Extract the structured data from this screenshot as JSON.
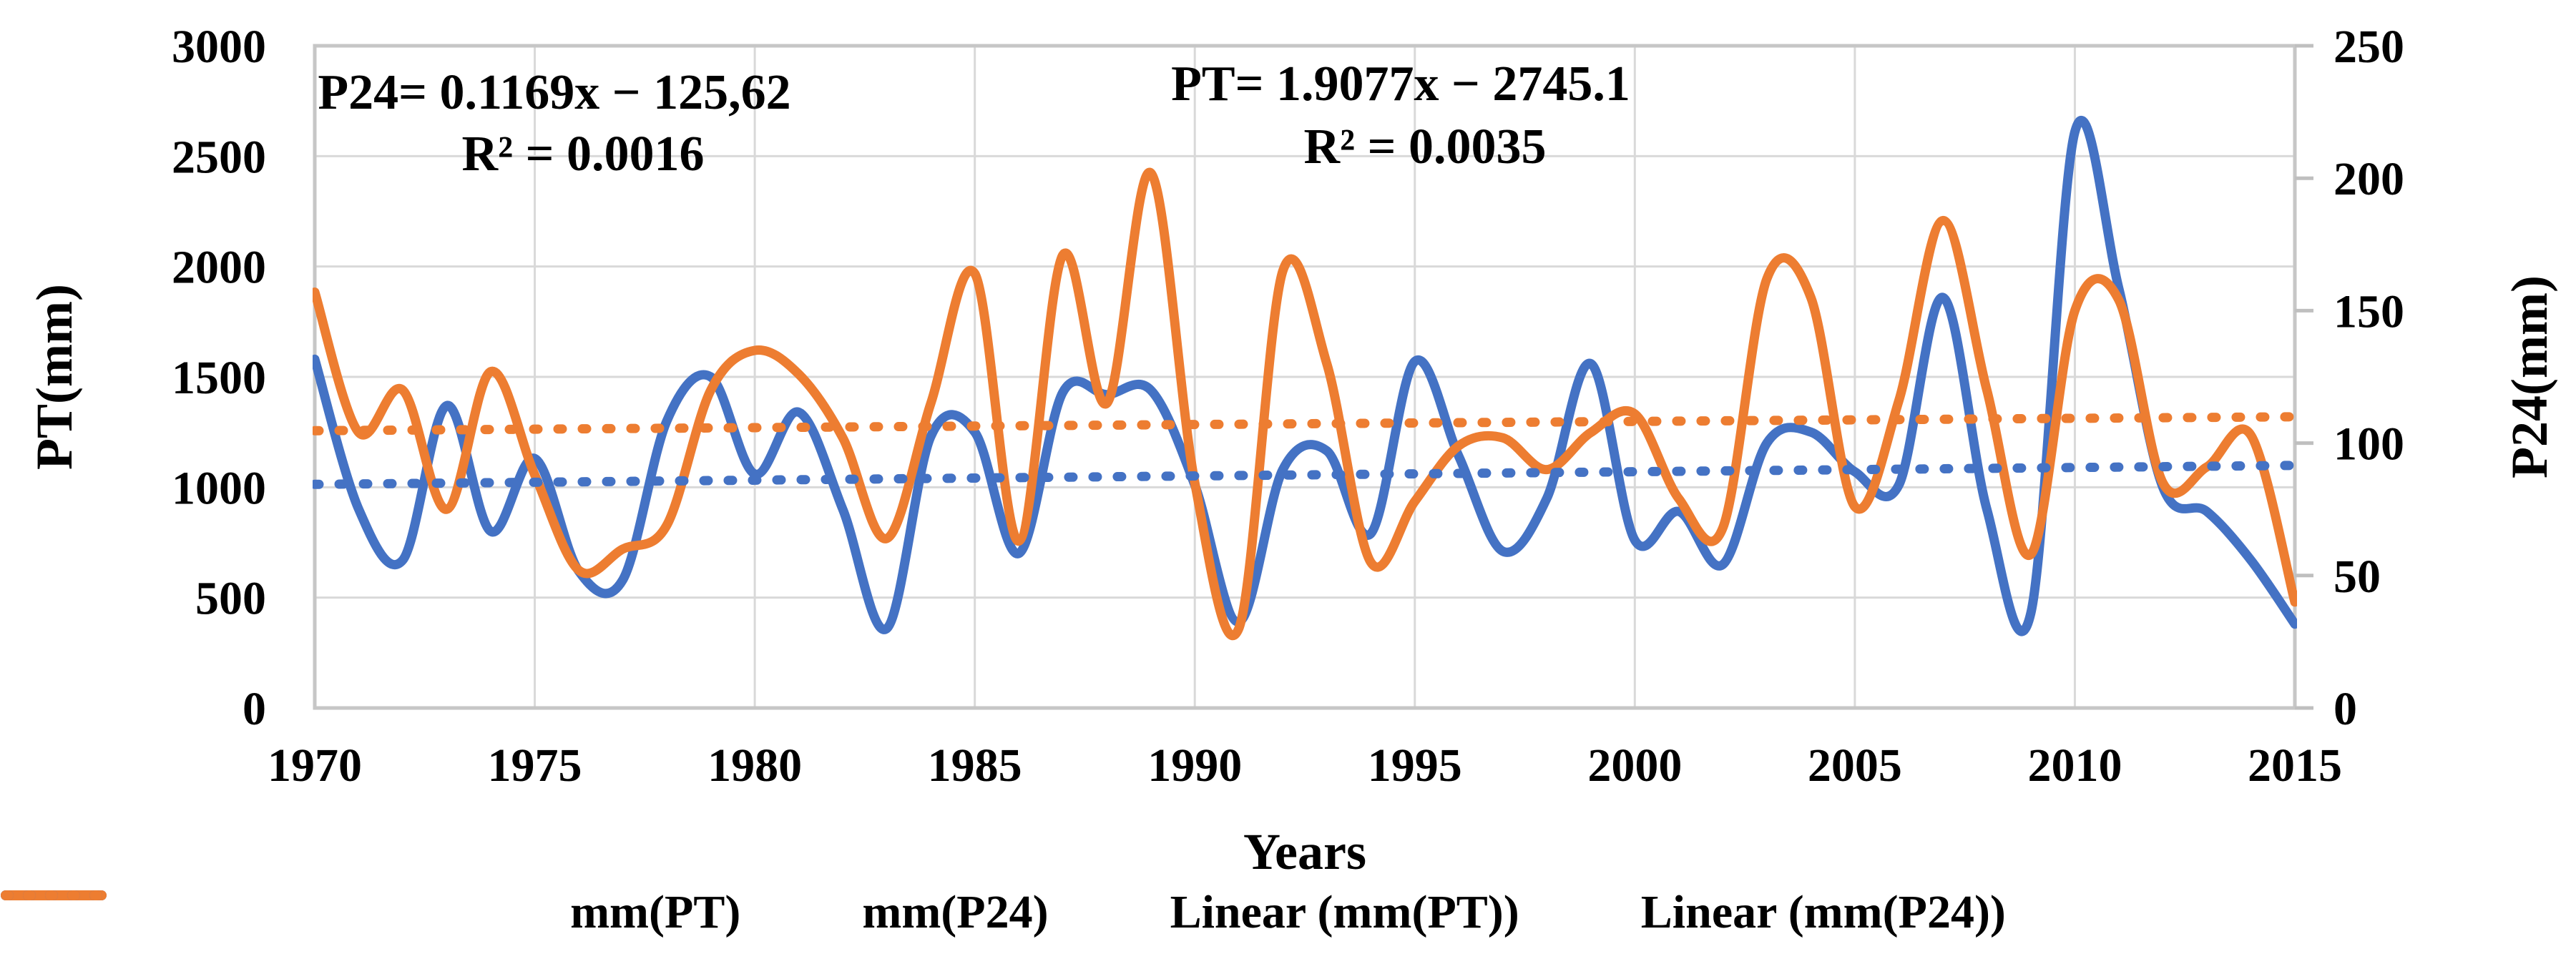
{
  "chart_data": {
    "type": "line",
    "title": "",
    "x": [
      1970,
      1971,
      1972,
      1973,
      1974,
      1975,
      1976,
      1977,
      1978,
      1979,
      1980,
      1981,
      1982,
      1983,
      1984,
      1985,
      1986,
      1987,
      1988,
      1989,
      1990,
      1991,
      1992,
      1993,
      1994,
      1995,
      1996,
      1997,
      1998,
      1999,
      2000,
      2001,
      2002,
      2003,
      2004,
      2005,
      2006,
      2007,
      2008,
      2009,
      2010,
      2011,
      2012,
      2013,
      2014,
      2015
    ],
    "series": [
      {
        "name": "mm(PT)",
        "axis": "left",
        "style": "solid",
        "color": "#4472C4",
        "values": [
          1580,
          900,
          670,
          1370,
          800,
          1130,
          620,
          580,
          1300,
          1500,
          1060,
          1340,
          900,
          360,
          1230,
          1250,
          700,
          1430,
          1420,
          1440,
          1010,
          390,
          1080,
          1165,
          790,
          1570,
          1140,
          710,
          950,
          1560,
          760,
          890,
          650,
          1200,
          1250,
          1070,
          1010,
          1860,
          900,
          430,
          2610,
          1900,
          1000,
          890,
          670,
          380
        ]
      },
      {
        "name": "mm(P24)",
        "axis": "right",
        "style": "solid",
        "color": "#ED7D31",
        "values": [
          157,
          104,
          120,
          75,
          127,
          88,
          52,
          60,
          69,
          120,
          135,
          126,
          102,
          64,
          115,
          164,
          63,
          171,
          115,
          202,
          85,
          30,
          165,
          130,
          55,
          78,
          99,
          102,
          90,
          104,
          111,
          79,
          68,
          162,
          155,
          76,
          116,
          184,
          120,
          58,
          150,
          154,
          85,
          91,
          103,
          40
        ]
      },
      {
        "name": "Linear (mm(PT))",
        "axis": "left",
        "style": "dotted",
        "color": "#4472C4",
        "trend": {
          "slope": 1.9077,
          "intercept": -2745.1
        }
      },
      {
        "name": "Linear (mm(P24))",
        "axis": "right",
        "style": "dotted",
        "color": "#ED7D31",
        "trend": {
          "slope": 0.1169,
          "intercept": -125.62
        }
      }
    ],
    "left_axis": {
      "label": "PT(mm)",
      "min": 0,
      "max": 3000,
      "step": 500,
      "ticks": [
        "3000",
        "2500",
        "2000",
        "1500",
        "1000",
        "500",
        "0"
      ]
    },
    "right_axis": {
      "label": "P24(mm)",
      "min": 0,
      "max": 250,
      "step": 50,
      "ticks": [
        "250",
        "200",
        "150",
        "100",
        "50",
        "0"
      ]
    },
    "x_axis": {
      "label": "Years",
      "min": 1970,
      "max": 2015,
      "ticks": [
        "1970",
        "1975",
        "1980",
        "1985",
        "1990",
        "1995",
        "2000",
        "2005",
        "2010",
        "2015"
      ]
    },
    "grid": {
      "on": true,
      "color": "#D9D9D9"
    },
    "legend_position": "bottom",
    "annotations": {
      "p24_eq": {
        "line1": "P24= 0.1169x − 125,62",
        "line2": "R² = 0.0016"
      },
      "pt_eq": {
        "line1": "PT= 1.9077x − 2745.1",
        "line2": "R² = 0.0035"
      }
    },
    "legend": [
      {
        "label": "mm(PT)",
        "color": "#4472C4",
        "style": "solid"
      },
      {
        "label": "mm(P24)",
        "color": "#ED7D31",
        "style": "solid"
      },
      {
        "label": "Linear (mm(PT))",
        "color": "#4472C4",
        "style": "dotted"
      },
      {
        "label": "Linear (mm(P24))",
        "color": "#ED7D31",
        "style": "dotted"
      }
    ],
    "colors": {
      "pt": "#4472C4",
      "p24": "#ED7D31",
      "grid": "#D9D9D9",
      "border": "#C6C6C6",
      "text": "#000000"
    }
  }
}
